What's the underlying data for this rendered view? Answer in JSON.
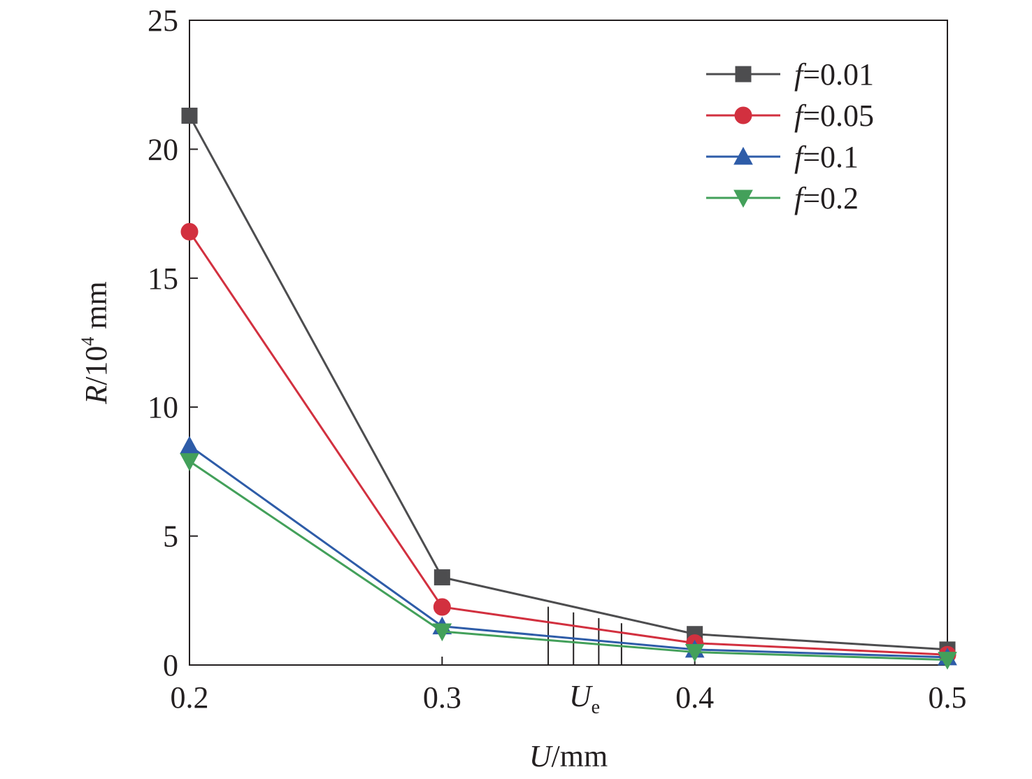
{
  "chart_data": {
    "type": "line",
    "xlabel": {
      "var": "U",
      "unit": "/mm"
    },
    "ylabel": {
      "var": "R",
      "unit_prefix": "/10",
      "unit_exp": "4",
      "unit_suffix": " mm"
    },
    "x": [
      0.2,
      0.3,
      0.4,
      0.5
    ],
    "xlim": [
      0.2,
      0.5
    ],
    "ylim": [
      0,
      25
    ],
    "xticks": [
      "0.2",
      "0.3",
      "0.4",
      "0.5"
    ],
    "yticks": [
      "0",
      "5",
      "10",
      "15",
      "20",
      "25"
    ],
    "grid": false,
    "legend_position": "top-right",
    "series": [
      {
        "name": "f=0.01",
        "name_var": "f",
        "name_val": "=0.01",
        "color": "#4d4d4f",
        "marker": "square",
        "values": [
          21.3,
          3.4,
          1.2,
          0.6
        ]
      },
      {
        "name": "f=0.05",
        "name_var": "f",
        "name_val": "=0.05",
        "color": "#d2303f",
        "marker": "circle",
        "values": [
          16.8,
          2.25,
          0.85,
          0.4
        ]
      },
      {
        "name": "f=0.1",
        "name_var": "f",
        "name_val": "=0.1",
        "color": "#2e5ca8",
        "marker": "triangle-up",
        "values": [
          8.5,
          1.5,
          0.6,
          0.3
        ]
      },
      {
        "name": "f=0.2",
        "name_var": "f",
        "name_val": "=0.2",
        "color": "#43a05a",
        "marker": "triangle-down",
        "values": [
          7.9,
          1.3,
          0.5,
          0.2
        ]
      }
    ],
    "annotation": {
      "label_var": "U",
      "label_sub": "e",
      "x": 0.352,
      "markers": [
        0.342,
        0.352,
        0.362,
        0.371
      ]
    }
  }
}
